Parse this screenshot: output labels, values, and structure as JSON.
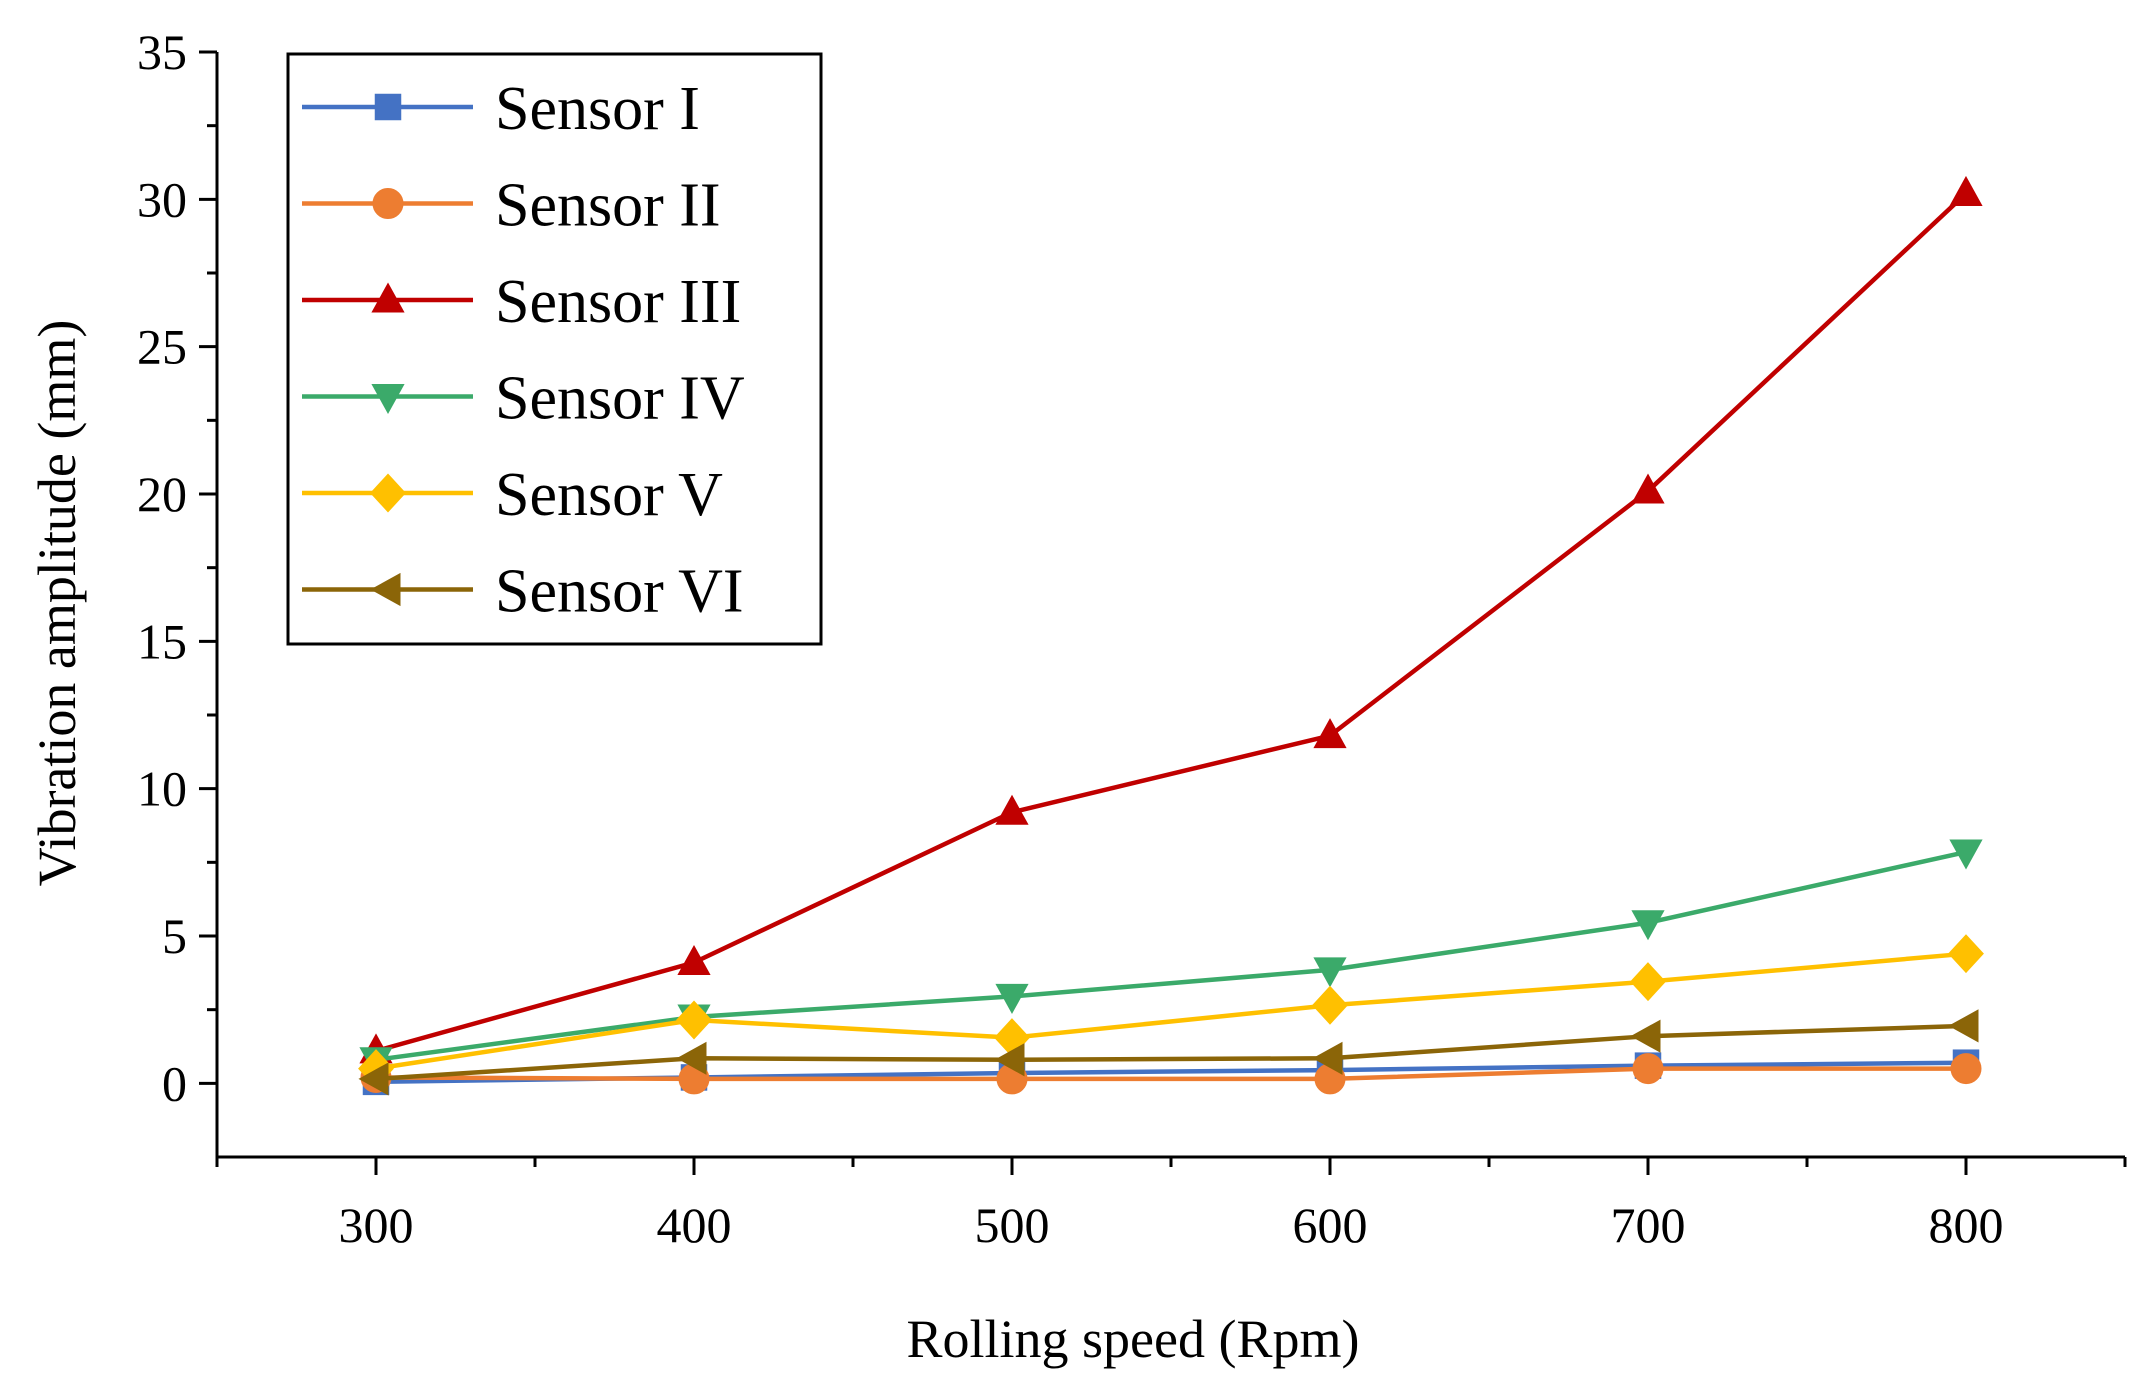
{
  "chart_data": {
    "type": "line",
    "title": "",
    "xlabel": "Rolling speed (Rpm)",
    "ylabel": "Vibration amplitude (mm)",
    "x": [
      300,
      400,
      500,
      600,
      700,
      800
    ],
    "xlim": [
      250,
      850
    ],
    "ylim": [
      -2.5,
      35
    ],
    "xticks": [
      300,
      400,
      500,
      600,
      700,
      800
    ],
    "yticks": [
      0,
      5,
      10,
      15,
      20,
      25,
      30,
      35
    ],
    "grid": false,
    "legend_position": "top-left",
    "series": [
      {
        "name": "Sensor I",
        "marker": "square",
        "color": "#4472C4",
        "values": [
          0.05,
          0.2,
          0.35,
          0.45,
          0.6,
          0.7
        ]
      },
      {
        "name": "Sensor II",
        "marker": "circle",
        "color": "#ED7D31",
        "values": [
          0.2,
          0.15,
          0.15,
          0.15,
          0.5,
          0.5
        ]
      },
      {
        "name": "Sensor III",
        "marker": "triangle-up",
        "color": "#C00000",
        "values": [
          1.1,
          4.1,
          9.2,
          11.8,
          20.1,
          30.2
        ]
      },
      {
        "name": "Sensor IV",
        "marker": "triangle-down",
        "color": "#3BAA6A",
        "values": [
          0.8,
          2.25,
          2.95,
          3.85,
          5.45,
          7.85
        ]
      },
      {
        "name": "Sensor V",
        "marker": "diamond",
        "color": "#FFC000",
        "values": [
          0.5,
          2.15,
          1.55,
          2.65,
          3.45,
          4.4
        ]
      },
      {
        "name": "Sensor VI",
        "marker": "triangle-left",
        "color": "#8B6508",
        "values": [
          0.15,
          0.85,
          0.8,
          0.85,
          1.6,
          1.95
        ]
      }
    ]
  }
}
